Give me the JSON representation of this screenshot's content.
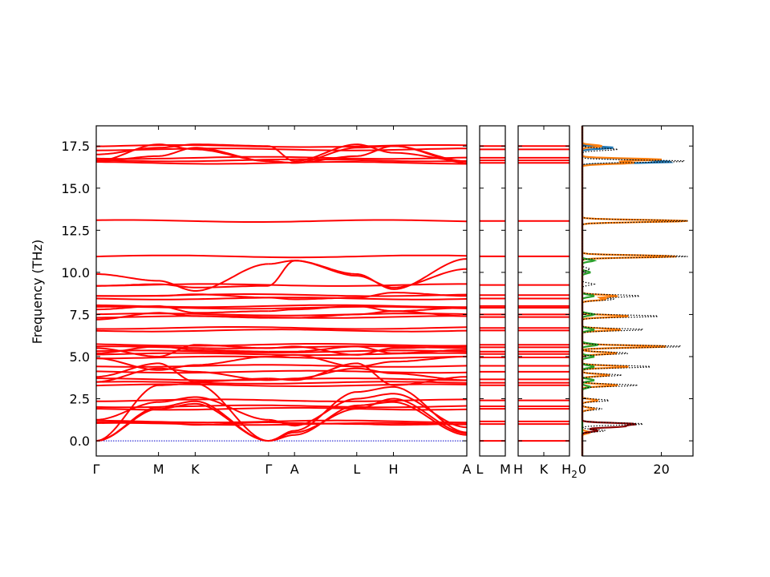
{
  "chart_data": {
    "type": "line",
    "title": "",
    "ylabel": "Frequency (THz)",
    "ylim": [
      -0.9,
      18.7
    ],
    "yticks": [
      "0.0",
      "2.5",
      "5.0",
      "7.5",
      "10.0",
      "12.5",
      "15.0",
      "17.5"
    ],
    "line_color": "#ff0000",
    "zero_line_color": "#0000cc",
    "panels": [
      {
        "kind": "band",
        "xticks": [
          {
            "label": "Γ",
            "x": 0
          },
          {
            "label": "M",
            "x": 0.168
          },
          {
            "label": "K",
            "x": 0.267
          },
          {
            "label": "Γ",
            "x": 0.465
          },
          {
            "label": "A",
            "x": 0.535
          },
          {
            "label": "L",
            "x": 0.703
          },
          {
            "label": "H",
            "x": 0.802
          },
          {
            "label": "A",
            "x": 1.0
          }
        ],
        "segments": [
          [
            0,
            0.465
          ],
          [
            0.465,
            1.0
          ]
        ]
      },
      {
        "kind": "band",
        "xticks": [
          {
            "label": "L",
            "x": 0
          },
          {
            "label": "M",
            "x": 1
          }
        ],
        "flat": true
      },
      {
        "kind": "band",
        "xticks": [
          {
            "label": "H",
            "x": 0
          },
          {
            "label": "K",
            "x": 0.5
          },
          {
            "label": "H2",
            "x": 1
          }
        ],
        "flat": true
      },
      {
        "kind": "dos",
        "xticks": [
          {
            "label": "0",
            "x": 0
          },
          {
            "label": "20",
            "x": 20
          }
        ],
        "xlim": [
          0,
          28
        ],
        "series": [
          {
            "color": "#1f77b4",
            "peaks": [
              [
                16.55,
                22
              ],
              [
                16.7,
                14
              ],
              [
                17.4,
                8
              ]
            ]
          },
          {
            "color": "#ff7f0e",
            "peaks": [
              [
                16.5,
                13
              ],
              [
                16.7,
                20
              ],
              [
                17.5,
                5
              ],
              [
                13.05,
                27
              ],
              [
                10.95,
                24
              ],
              [
                8.6,
                9
              ],
              [
                8.4,
                6
              ],
              [
                7.4,
                12
              ],
              [
                6.6,
                10
              ],
              [
                5.6,
                22
              ],
              [
                5.2,
                9
              ],
              [
                4.4,
                12
              ],
              [
                3.9,
                7
              ],
              [
                3.3,
                9
              ],
              [
                2.4,
                4
              ],
              [
                1.9,
                3
              ],
              [
                0.5,
                2
              ]
            ]
          },
          {
            "color": "#2ca02c",
            "peaks": [
              [
                10.7,
                3
              ],
              [
                10.0,
                2
              ],
              [
                8.6,
                3
              ],
              [
                7.5,
                3
              ],
              [
                6.6,
                3
              ],
              [
                5.7,
                4
              ],
              [
                5.0,
                3
              ],
              [
                4.4,
                3
              ],
              [
                3.6,
                3
              ],
              [
                3.2,
                2
              ]
            ]
          },
          {
            "color": "#8b0000",
            "peaks": [
              [
                1.0,
                13
              ],
              [
                0.85,
                10
              ],
              [
                0.6,
                4
              ]
            ]
          },
          {
            "color": "#000000",
            "dotted": true,
            "peaks": [
              [
                16.6,
                27
              ],
              [
                17.3,
                9
              ],
              [
                13.05,
                27
              ],
              [
                10.95,
                27
              ],
              [
                10.2,
                2
              ],
              [
                9.3,
                3
              ],
              [
                8.6,
                15
              ],
              [
                8.4,
                8
              ],
              [
                7.4,
                20
              ],
              [
                6.6,
                16
              ],
              [
                5.6,
                26
              ],
              [
                5.2,
                12
              ],
              [
                4.4,
                18
              ],
              [
                3.9,
                10
              ],
              [
                3.3,
                14
              ],
              [
                2.4,
                7
              ],
              [
                1.9,
                5
              ],
              [
                1.0,
                16
              ],
              [
                0.6,
                6
              ]
            ]
          }
        ]
      }
    ]
  }
}
